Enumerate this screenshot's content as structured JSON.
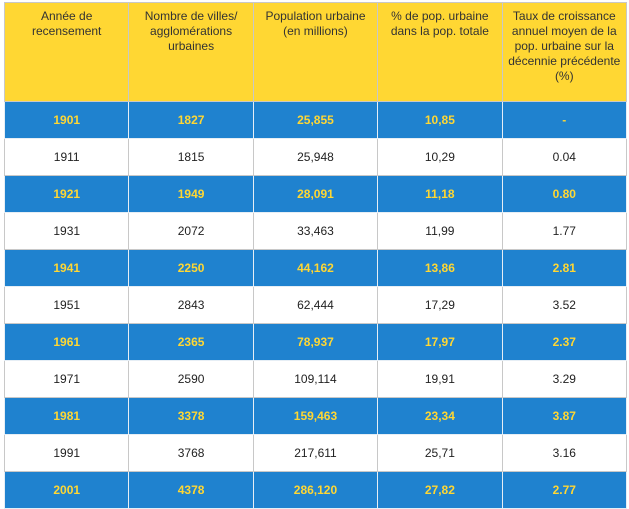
{
  "table": {
    "header": [
      "Année de recensement",
      "Nombre de villes/ agglomérations urbaines",
      "Population urbaine (en millions)",
      "% de pop. urbaine dans la pop. totale",
      "Taux de croissance annuel moyen de la pop. urbaine sur la décennie précédente (%)"
    ],
    "rows": [
      [
        "1901",
        "1827",
        "25,855",
        "10,85",
        "-"
      ],
      [
        "1911",
        "1815",
        "25,948",
        "10,29",
        "0.04"
      ],
      [
        "1921",
        "1949",
        "28,091",
        "11,18",
        "0.80"
      ],
      [
        "1931",
        "2072",
        "33,463",
        "11,99",
        "1.77"
      ],
      [
        "1941",
        "2250",
        "44,162",
        "13,86",
        "2.81"
      ],
      [
        "1951",
        "2843",
        "62,444",
        "17,29",
        "3.52"
      ],
      [
        "1961",
        "2365",
        "78,937",
        "17,97",
        "2.37"
      ],
      [
        "1971",
        "2590",
        "109,114",
        "19,91",
        "3.29"
      ],
      [
        "1981",
        "3378",
        "159,463",
        "23,34",
        "3.87"
      ],
      [
        "1991",
        "3768",
        "217,611",
        "25,71",
        "3.16"
      ],
      [
        "2001",
        "4378",
        "286,120",
        "27,82",
        "2.77"
      ]
    ]
  }
}
